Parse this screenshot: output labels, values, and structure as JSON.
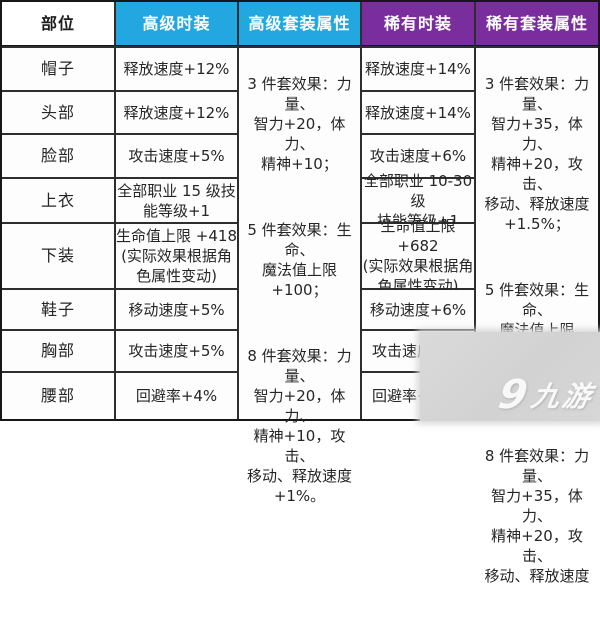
{
  "chart_data": {
    "type": "table",
    "columns": [
      "部位",
      "高级时装",
      "高级套装属性",
      "稀有时装",
      "稀有套装属性"
    ],
    "body_rows": [
      {
        "part": "帽子",
        "advanced": "释放速度+12%",
        "rare": "释放速度+14%"
      },
      {
        "part": "头部",
        "advanced": "释放速度+12%",
        "rare": "释放速度+14%"
      },
      {
        "part": "脸部",
        "advanced": "攻击速度+5%",
        "rare": "攻击速度+6%"
      },
      {
        "part": "上衣",
        "advanced": "全部职业 15 级技\n能等级+1",
        "rare": "全部职业 10-30 级\n技能等级+1"
      },
      {
        "part": "下装",
        "advanced": "生命值上限 +418\n(实际效果根据角\n色属性变动)",
        "rare": "生命值上限+682\n(实际效果根据角\n色属性变动)"
      },
      {
        "part": "鞋子",
        "advanced": "移动速度+5%",
        "rare": "移动速度+6%"
      },
      {
        "part": "胸部",
        "advanced": "攻击速度+5%",
        "rare": "攻击速度"
      },
      {
        "part": "腰部",
        "advanced": "回避率+4%",
        "rare": "回避率+"
      }
    ],
    "advanced_set_bonus": {
      "pieces3": "3 件套效果：力量、\n智力+20，体力、\n精神+10；",
      "pieces5": "5 件套效果：生命、\n魔法值上限+100；",
      "pieces8": "8 件套效果：力量、\n智力+20，体力、\n精神+10，攻击、\n移动、释放速度\n+1%。"
    },
    "rare_set_bonus": {
      "pieces3": "3 件套效果：力量、\n智力+35，体力、\n精神+20，攻击、\n移动、释放速度\n+1.5%；",
      "pieces5": "5 件套效果：生命、\n魔法值上限+220，\n命中、回避率+1%；",
      "pieces8": "8 件套效果：力量、\n智力+35，体力、\n精神+20，攻击、\n移动、释放速度"
    }
  },
  "watermark": {
    "site_name": "九游",
    "logo_glyph": "9"
  },
  "colors": {
    "advanced_header": "#22a7e1",
    "rare_header": "#7a2e9e",
    "grid_line": "#2e2e2e",
    "cell_bg": "#fdfdfd",
    "watermark_bg": "#d5d5d5"
  }
}
